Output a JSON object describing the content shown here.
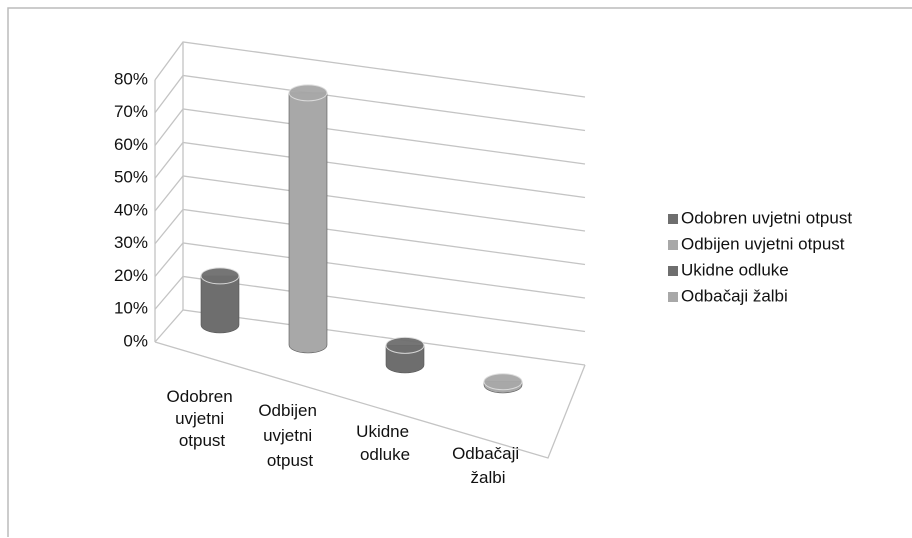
{
  "chart_data": {
    "type": "cylinder3d",
    "categories": [
      "Odobren uvjetni otpust",
      "Odbijen uvjetni otpust",
      "Ukidne odluke",
      "Odbačaji žalbi"
    ],
    "values": [
      15,
      77,
      6,
      1
    ],
    "colors": [
      "#6e6e6e",
      "#a8a8a8",
      "#6e6e6e",
      "#a8a8a8"
    ],
    "ylim": [
      0,
      80
    ],
    "yticks": [
      {
        "value": 0,
        "label": "0%"
      },
      {
        "value": 10,
        "label": "10%"
      },
      {
        "value": 20,
        "label": "20%"
      },
      {
        "value": 30,
        "label": "30%"
      },
      {
        "value": 40,
        "label": "40%"
      },
      {
        "value": 50,
        "label": "50%"
      },
      {
        "value": 60,
        "label": "60%"
      },
      {
        "value": 70,
        "label": "70%"
      },
      {
        "value": 80,
        "label": "80%"
      }
    ],
    "grid": true,
    "legend": "right"
  }
}
